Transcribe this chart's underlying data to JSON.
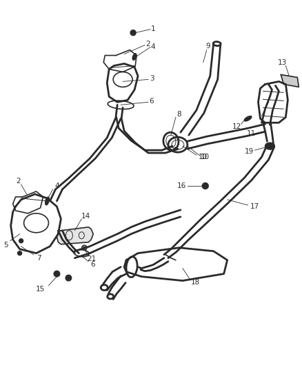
{
  "background_color": "#ffffff",
  "figure_width": 4.38,
  "figure_height": 5.33,
  "dpi": 100,
  "line_color": "#2a2a2a",
  "label_color": "#2a2a2a",
  "font_size": 7.5
}
